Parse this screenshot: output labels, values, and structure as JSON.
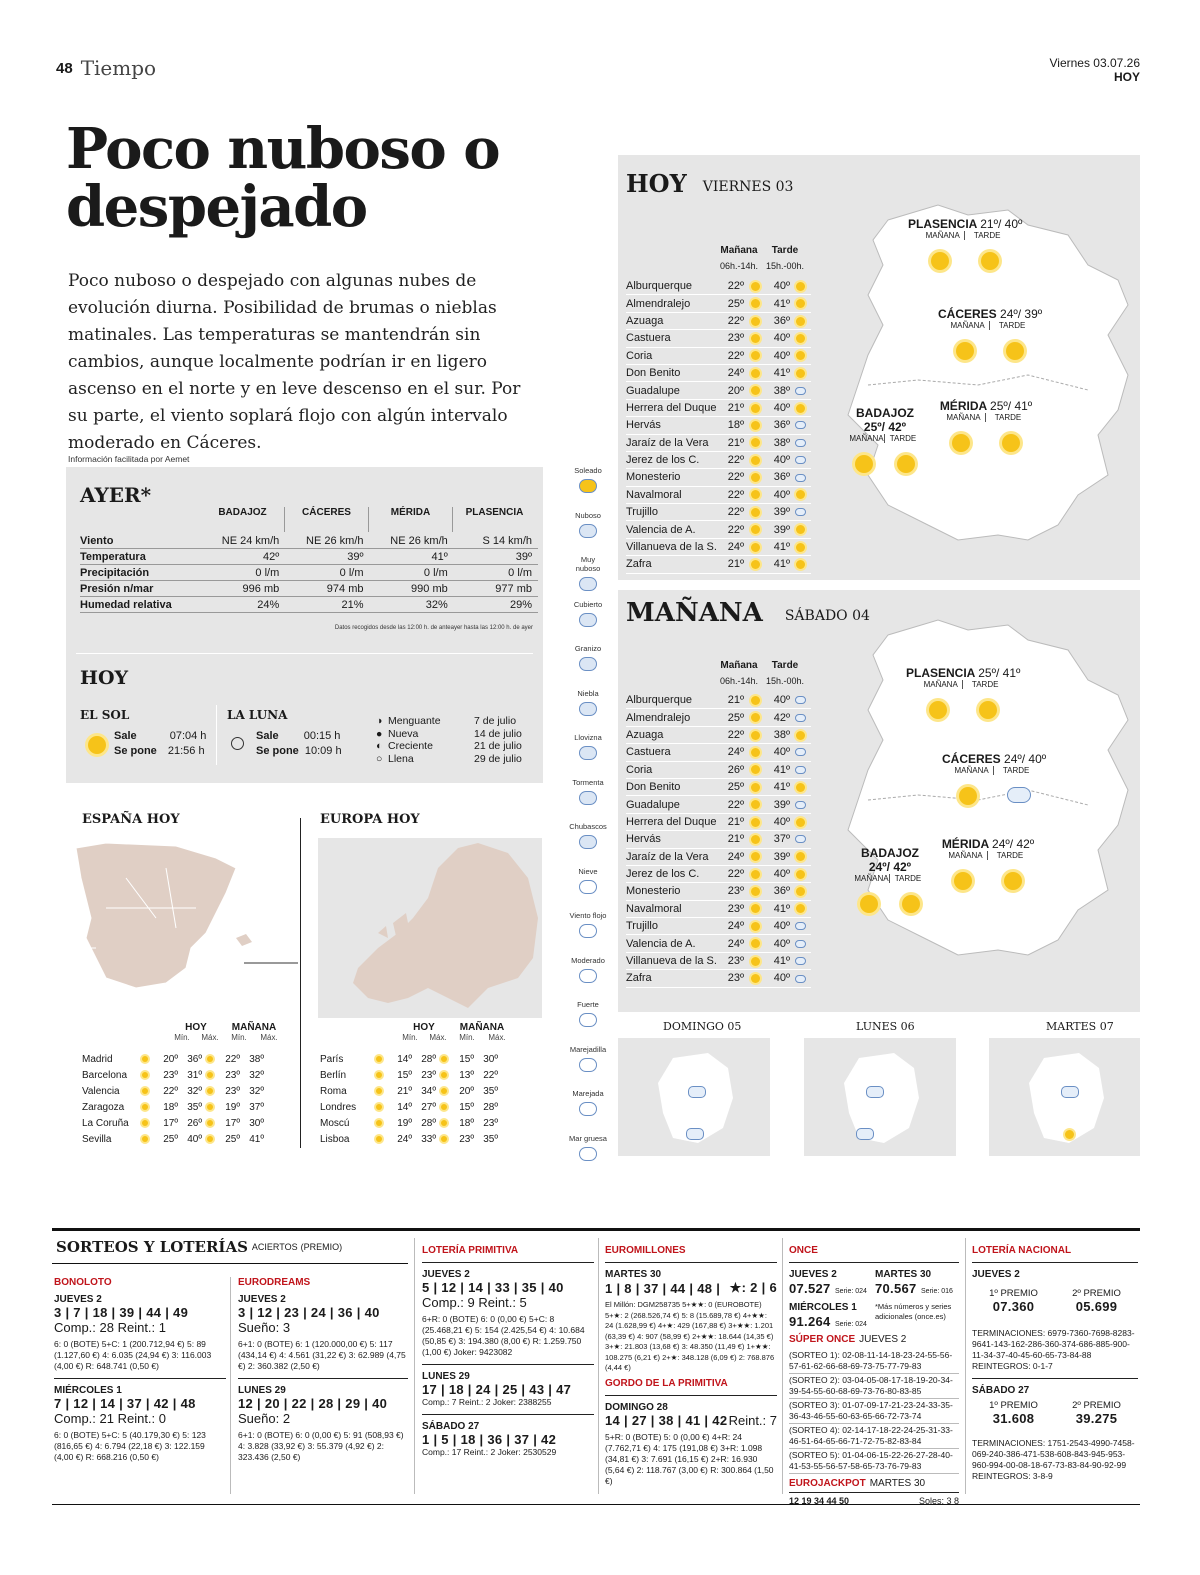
{
  "header": {
    "page_number": "48",
    "section": "Tiempo",
    "date": "Viernes 03.07.26",
    "today": "HOY"
  },
  "headline": "Poco nuboso o despejado",
  "intro": "Poco nuboso o despejado con algunas nubes de evolución diurna. Posibilidad de brumas o nieblas matinales. Las temperaturas se mantendrán sin cambios, aunque localmente podrían ir en ligero ascenso en el norte y en leve descenso en el sur. Por su parte, el viento soplará flojo con algún intervalo moderado en Cáceres.",
  "source": "Información facilitada por Aemet",
  "ayer": {
    "title": "AYER*",
    "cities": [
      "BADAJOZ",
      "CÁCERES",
      "MÉRIDA",
      "PLASENCIA"
    ],
    "rows": [
      {
        "label": "Viento",
        "values": [
          "NE 24 km/h",
          "NE 26 km/h",
          "NE 26 km/h",
          "S 14 km/h"
        ]
      },
      {
        "label": "Temperatura",
        "values": [
          "42º",
          "39º",
          "41º",
          "39º"
        ]
      },
      {
        "label": "Precipitación",
        "values": [
          "0 l/m",
          "0 l/m",
          "0 l/m",
          "0 l/m"
        ]
      },
      {
        "label": "Presión n/mar",
        "values": [
          "996 mb",
          "974 mb",
          "990 mb",
          "977 mb"
        ]
      },
      {
        "label": "Humedad relativa",
        "values": [
          "24%",
          "21%",
          "32%",
          "29%"
        ]
      }
    ],
    "note": "Datos recogidos desde las 12:00 h. de anteayer hasta las 12:00 h. de ayer"
  },
  "hoy_box": {
    "title": "HOY",
    "sol": {
      "title": "EL SOL",
      "sale_label": "Sale",
      "sale": "07:04 h",
      "pone_label": "Se pone",
      "pone": "21:56 h"
    },
    "luna": {
      "title": "LA LUNA",
      "sale_label": "Sale",
      "sale": "00:15 h",
      "pone_label": "Se pone",
      "pone": "10:09 h"
    },
    "fases": [
      {
        "name": "Menguante",
        "date": "7 de julio"
      },
      {
        "name": "Nueva",
        "date": "14 de julio"
      },
      {
        "name": "Creciente",
        "date": "21 de julio"
      },
      {
        "name": "Llena",
        "date": "29 de julio"
      }
    ]
  },
  "espana": {
    "title": "ESPAÑA HOY",
    "col_hoy": "HOY",
    "col_man": "MAÑANA",
    "min": "Mín.",
    "max": "Máx.",
    "rows": [
      {
        "city": "Madrid",
        "h": [
          "20º",
          "36º"
        ],
        "m": [
          "22º",
          "38º"
        ]
      },
      {
        "city": "Barcelona",
        "h": [
          "23º",
          "31º"
        ],
        "m": [
          "23º",
          "32º"
        ]
      },
      {
        "city": "Valencia",
        "h": [
          "22º",
          "32º"
        ],
        "m": [
          "23º",
          "32º"
        ]
      },
      {
        "city": "Zaragoza",
        "h": [
          "18º",
          "35º"
        ],
        "m": [
          "19º",
          "37º"
        ]
      },
      {
        "city": "La Coruña",
        "h": [
          "17º",
          "26º"
        ],
        "m": [
          "17º",
          "30º"
        ]
      },
      {
        "city": "Sevilla",
        "h": [
          "25º",
          "40º"
        ],
        "m": [
          "25º",
          "41º"
        ]
      }
    ]
  },
  "europa": {
    "title": "EUROPA HOY",
    "col_hoy": "HOY",
    "col_man": "MAÑANA",
    "min": "Mín.",
    "max": "Máx.",
    "rows": [
      {
        "city": "París",
        "h": [
          "14º",
          "28º"
        ],
        "m": [
          "15º",
          "30º"
        ]
      },
      {
        "city": "Berlín",
        "h": [
          "15º",
          "23º"
        ],
        "m": [
          "13º",
          "22º"
        ]
      },
      {
        "city": "Roma",
        "h": [
          "21º",
          "34º"
        ],
        "m": [
          "20º",
          "35º"
        ]
      },
      {
        "city": "Londres",
        "h": [
          "14º",
          "27º"
        ],
        "m": [
          "15º",
          "28º"
        ]
      },
      {
        "city": "Moscú",
        "h": [
          "19º",
          "28º"
        ],
        "m": [
          "18º",
          "23º"
        ]
      },
      {
        "city": "Lisboa",
        "h": [
          "24º",
          "33º"
        ],
        "m": [
          "23º",
          "35º"
        ]
      }
    ]
  },
  "legend": [
    "Soleado",
    "Nuboso",
    "Muy nuboso",
    "Cubierto",
    "Granizo",
    "Niebla",
    "Llovizna",
    "Tormenta",
    "Chubascos",
    "Nieve",
    "Viento flojo",
    "Moderado",
    "Fuerte",
    "Marejadilla",
    "Marejada",
    "Mar gruesa"
  ],
  "today_panel": {
    "title": "HOY",
    "day": "VIERNES 03",
    "col_m": "Mañana",
    "col_t": "Tarde",
    "hours_m": "06h.-14h.",
    "hours_t": "15h.-00h.",
    "rows": [
      [
        "Alburquerque",
        "22º",
        "40º"
      ],
      [
        "Almendralejo",
        "25º",
        "41º"
      ],
      [
        "Azuaga",
        "22º",
        "36º"
      ],
      [
        "Castuera",
        "23º",
        "40º"
      ],
      [
        "Coria",
        "22º",
        "40º"
      ],
      [
        "Don Benito",
        "24º",
        "41º"
      ],
      [
        "Guadalupe",
        "20º",
        "38º"
      ],
      [
        "Herrera del Duque",
        "21º",
        "40º"
      ],
      [
        "Hervás",
        "18º",
        "36º"
      ],
      [
        "Jaraíz de la Vera",
        "21º",
        "38º"
      ],
      [
        "Jerez de los C.",
        "22º",
        "40º"
      ],
      [
        "Monesterio",
        "22º",
        "36º"
      ],
      [
        "Navalmoral",
        "22º",
        "40º"
      ],
      [
        "Trujillo",
        "22º",
        "39º"
      ],
      [
        "Valencia de A.",
        "22º",
        "39º"
      ],
      [
        "Villanueva de la S.",
        "24º",
        "41º"
      ],
      [
        "Zafra",
        "21º",
        "41º"
      ]
    ],
    "map": {
      "plasencia": "PLASENCIA",
      "plasencia_t": "21º/ 40º",
      "caceres": "CÁCERES",
      "caceres_t": "24º/ 39º",
      "badajoz": "BADAJOZ",
      "badajoz_t": "25º/ 42º",
      "merida": "MÉRIDA",
      "merida_t": "25º/ 41º",
      "manana": "MAÑANA",
      "tarde": "TARDE"
    }
  },
  "tomorrow_panel": {
    "title": "MAÑANA",
    "day": "SÁBADO 04",
    "col_m": "Mañana",
    "col_t": "Tarde",
    "hours_m": "06h.-14h.",
    "hours_t": "15h.-00h.",
    "rows": [
      [
        "Alburquerque",
        "21º",
        "40º"
      ],
      [
        "Almendralejo",
        "25º",
        "42º"
      ],
      [
        "Azuaga",
        "22º",
        "38º"
      ],
      [
        "Castuera",
        "24º",
        "40º"
      ],
      [
        "Coria",
        "26º",
        "41º"
      ],
      [
        "Don Benito",
        "25º",
        "41º"
      ],
      [
        "Guadalupe",
        "22º",
        "39º"
      ],
      [
        "Herrera del Duque",
        "21º",
        "40º"
      ],
      [
        "Hervás",
        "21º",
        "37º"
      ],
      [
        "Jaraíz de la Vera",
        "24º",
        "39º"
      ],
      [
        "Jerez de los C.",
        "22º",
        "40º"
      ],
      [
        "Monesterio",
        "23º",
        "36º"
      ],
      [
        "Navalmoral",
        "23º",
        "41º"
      ],
      [
        "Trujillo",
        "24º",
        "40º"
      ],
      [
        "Valencia de A.",
        "24º",
        "40º"
      ],
      [
        "Villanueva de la S.",
        "23º",
        "41º"
      ],
      [
        "Zafra",
        "23º",
        "40º"
      ]
    ],
    "map": {
      "plasencia": "PLASENCIA",
      "plasencia_t": "25º/ 41º",
      "caceres": "CÁCERES",
      "caceres_t": "24º/ 40º",
      "badajoz": "BADAJOZ",
      "badajoz_t": "24º/ 42º",
      "merida": "MÉRIDA",
      "merida_t": "24º/ 42º",
      "manana": "MAÑANA",
      "tarde": "TARDE"
    }
  },
  "next_days": [
    "DOMINGO 05",
    "LUNES 06",
    "MARTES 07"
  ],
  "lotteries": {
    "title": "SORTEOS Y LOTERÍAS",
    "subtitle": "ACIERTOS",
    "subtitle2": "(PREMIO)",
    "bonoloto": {
      "title": "BONOLOTO",
      "d1": "JUEVES 2",
      "n1": "3 | 7 | 18 | 39 | 44 | 49",
      "c1": "Comp.: 28 Reint.: 1",
      "p1": "6: 0 (BOTE) 5+C: 1 (200.712,94 €) 5: 89 (1.127,60 €) 4: 6.035 (24,94 €) 3: 116.003 (4,00 €) R: 648.741 (0,50 €)",
      "d2": "MIÉRCOLES 1",
      "n2": "7 | 12 | 14 | 37 | 42 | 48",
      "c2": "Comp.: 21 Reint.: 0",
      "p2": "6: 0 (BOTE) 5+C: 5 (40.179,30 €) 5: 123 (816,65 €) 4: 6.794 (22,18 €) 3: 122.159 (4,00 €) R: 668.216 (0,50 €)"
    },
    "eurodreams": {
      "title": "EURODREAMS",
      "d1": "JUEVES 2",
      "n1": "3 | 12 | 23 | 24 | 36 | 40",
      "c1": "Sueño: 3",
      "p1": "6+1: 0 (BOTE) 6: 1 (120.000,00 €) 5: 117 (434,14 €) 4: 4.561 (31,22 €) 3: 62.989 (4,75 €) 2: 360.382 (2,50 €)",
      "d2": "LUNES 29",
      "n2": "12 | 20 | 22 | 28 | 29 | 40",
      "c2": "Sueño: 2",
      "p2": "6+1: 0 (BOTE) 6: 0 (0,00 €) 5: 91 (508,93 €) 4: 3.828 (33,92 €) 3: 55.379 (4,92 €) 2: 323.436 (2,50 €)"
    },
    "primitiva": {
      "title": "LOTERÍA PRIMITIVA",
      "d1": "JUEVES 2",
      "n1": "5 | 12 | 14 | 33 | 35 | 40",
      "c1": "Comp.: 9 Reint.: 5",
      "p1": "6+R: 0 (BOTE) 6: 0 (0,00 €) 5+C: 8 (25.468,21 €) 5: 154 (2.425,54 €) 4: 10.684 (50,85 €) 3: 194.380 (8,00 €) R: 1.259.750 (1,00 €) Joker: 9423082",
      "d2": "LUNES 29",
      "n2": "17 | 18 | 24 | 25 | 43 | 47",
      "c2": "Comp.: 7 Reint.: 2 Joker: 2388255",
      "d3": "SÁBADO 27",
      "n3": "1 | 5 | 18 | 36 | 37 | 42",
      "c3": "Comp.: 17 Reint.: 2 Joker: 2530529"
    },
    "euromillones": {
      "title": "EUROMILLONES",
      "d1": "MARTES 30",
      "n1": "1 | 8 | 37 | 44 | 48 |",
      "stars": "★: 2 | 6",
      "p1": "El Millón: DGM258735 5+★★: 0 (EUROBOTE) 5+★: 2 (268.526,74 €) 5: 8 (15.689,78 €) 4+★★: 24 (1.628,99 €) 4+★: 429 (167,88 €) 3+★★: 1.201 (63,39 €) 4: 907 (58,99 €) 2+★★: 18.644 (14,35 €) 3+★: 21.803 (13,68 €) 3: 48.350 (11,49 €) 1+★★: 108.275 (6,21 €) 2+★: 348.128 (6,09 €) 2: 768.876 (4,44 €)",
      "gordo_title": "GORDO DE LA PRIMITIVA",
      "d2": "DOMINGO 28",
      "n2": "14 | 27 | 38 | 41 | 42",
      "c2": "Reint.: 7",
      "p2": "5+R: 0 (BOTE) 5: 0 (0,00 €) 4+R: 24 (7.762,71 €) 4: 175 (191,08 €) 3+R: 1.098 (34,81 €) 3: 7.691 (16,15 €) 2+R: 16.930 (5,64 €) 2: 118.767 (3,00 €) R: 300.864 (1,50 €)"
    },
    "once": {
      "title": "ONCE",
      "d1": "JUEVES 2",
      "n1": "07.527",
      "s1": "Serie: 024",
      "d2": "MARTES 30",
      "n2": "70.567",
      "s2": "Serie: 016",
      "d3": "MIÉRCOLES 1",
      "n3": "91.264",
      "s3": "Serie: 024",
      "note": "*Más números y series adicionales (once.es)",
      "super_title": "SÚPER ONCE",
      "super_day": "JUEVES 2",
      "sorteos": [
        "(SORTEO 1): 02-08-11-14-18-23-24-55-56-57-61-62-66-68-69-73-75-77-79-83",
        "(SORTEO 2): 03-04-05-08-17-18-19-20-34-39-54-55-60-68-69-73-76-80-83-85",
        "(SORTEO 3): 01-07-09-17-21-23-24-33-35-36-43-46-55-60-63-65-66-72-73-74",
        "(SORTEO 4): 02-14-17-18-22-24-25-31-33-46-51-64-65-66-71-72-75-82-83-84",
        "(SORTEO 5): 01-04-06-15-22-26-27-28-40-41-53-55-56-57-58-65-73-76-79-83"
      ],
      "ej_title": "EUROJACKPOT",
      "ej_day": "MARTES 30",
      "ej_n": "12  19  34  44  50",
      "ej_soles": "Soles: 3  8"
    },
    "nacional": {
      "title": "LOTERÍA NACIONAL",
      "d1": "JUEVES 2",
      "p1_label": "1º PREMIO",
      "p1": "07.360",
      "p2_label": "2º PREMIO",
      "p2": "05.699",
      "t1": "TERMINACIONES: 6979-7360-7698-8283-9641-143-162-286-360-374-686-885-900-11-34-37-40-45-60-65-73-84-88 REINTEGROS: 0-1-7",
      "d2": "SÁBADO 27",
      "q1": "31.608",
      "q2": "39.275",
      "t2": "TERMINACIONES: 1751-2543-4990-7458-069-240-386-471-538-608-843-945-953-960-994-00-08-18-67-73-83-84-90-92-99 REINTEGROS: 3-8-9"
    }
  }
}
